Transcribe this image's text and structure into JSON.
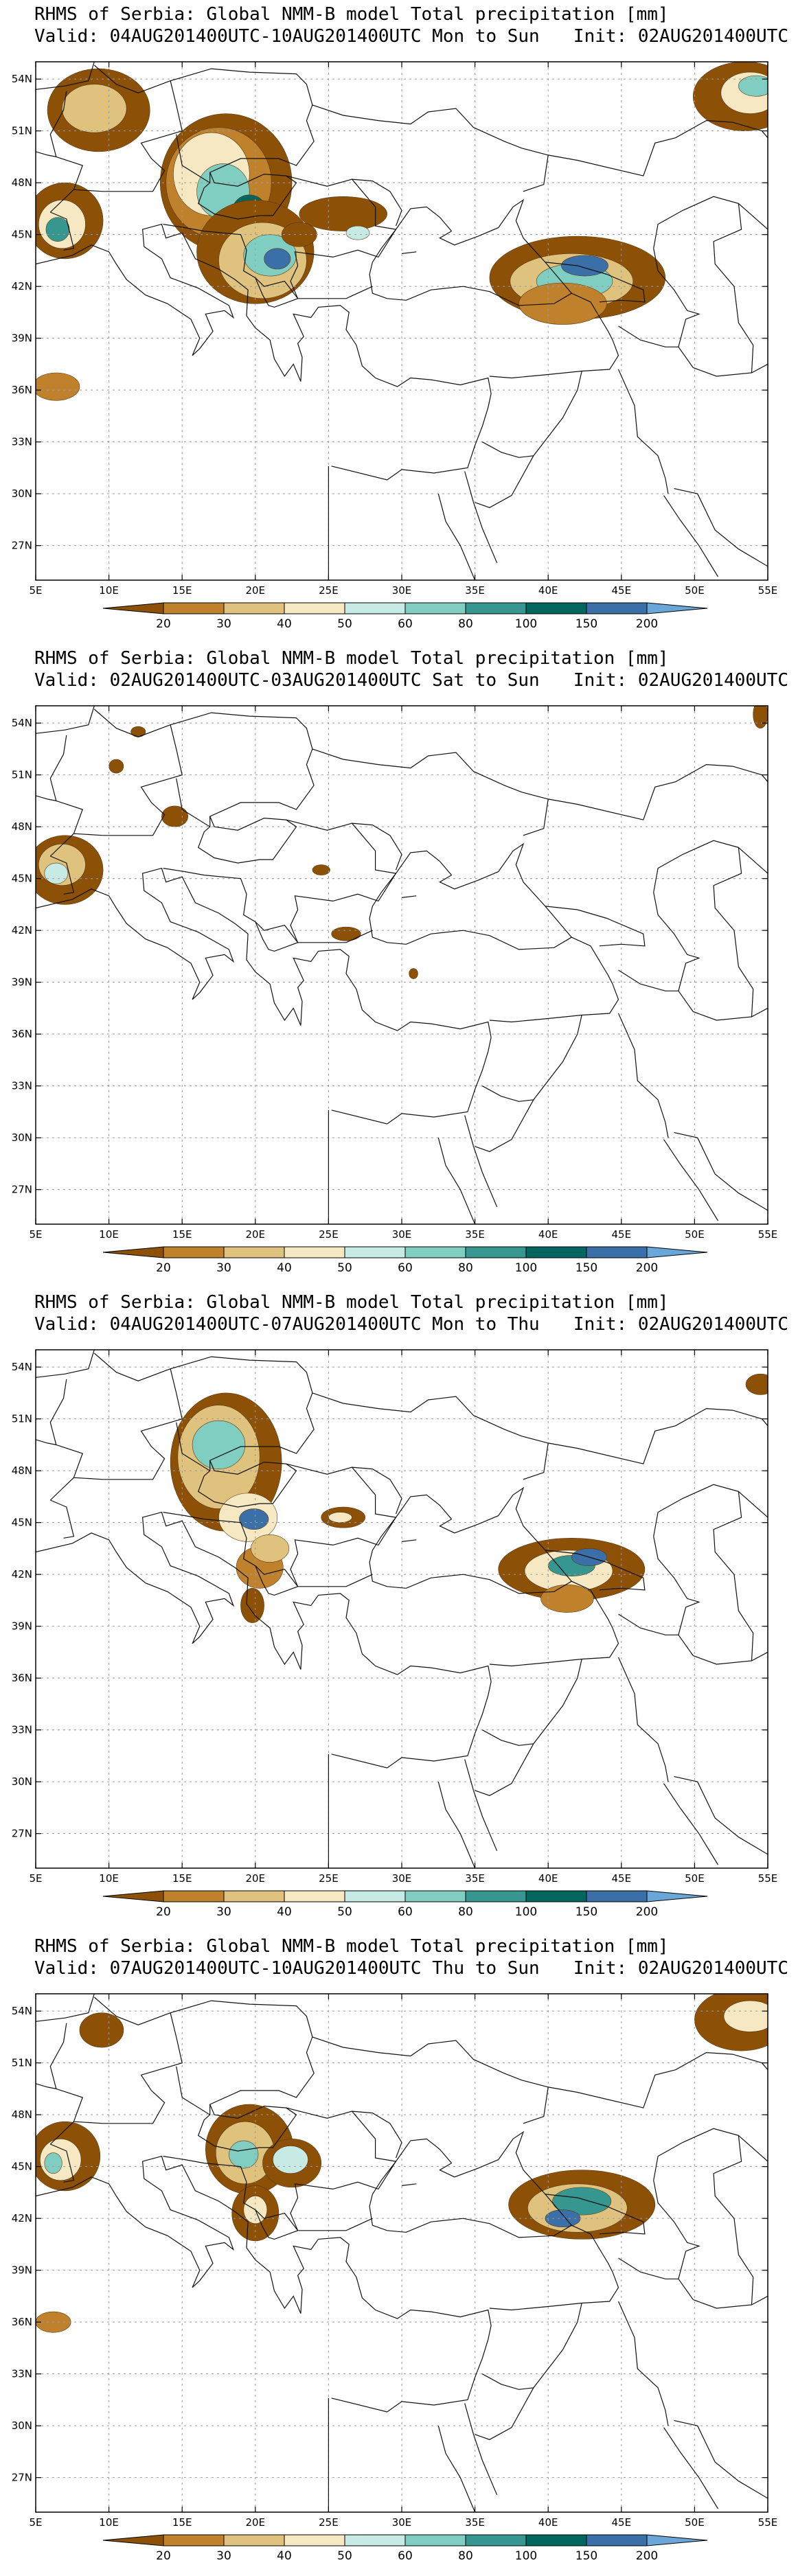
{
  "panels": [
    {
      "title": "RHMS of Serbia: Global NMM-B model Total precipitation [mm]",
      "valid": "Valid: 04AUG201400UTC-10AUG201400UTC Mon to Sun",
      "init": "Init: 02AUG201400UTC"
    },
    {
      "title": "RHMS of Serbia: Global NMM-B model Total precipitation [mm]",
      "valid": "Valid: 02AUG201400UTC-03AUG201400UTC Sat to Sun",
      "init": "Init: 02AUG201400UTC"
    },
    {
      "title": "RHMS of Serbia: Global NMM-B model Total precipitation [mm]",
      "valid": "Valid: 04AUG201400UTC-07AUG201400UTC Mon to Thu",
      "init": "Init: 02AUG201400UTC"
    },
    {
      "title": "RHMS of Serbia: Global NMM-B model Total precipitation [mm]",
      "valid": "Valid: 07AUG201400UTC-10AUG201400UTC Thu to Sun",
      "init": "Init: 02AUG201400UTC"
    }
  ],
  "map": {
    "lon_labels": [
      "5E",
      "10E",
      "15E",
      "20E",
      "25E",
      "30E",
      "35E",
      "40E",
      "45E",
      "50E",
      "55E"
    ],
    "lat_labels": [
      "54N",
      "51N",
      "48N",
      "45N",
      "42N",
      "39N",
      "36N",
      "33N",
      "30N",
      "27N"
    ],
    "lon_range": [
      5,
      55
    ],
    "lat_range": [
      25,
      55
    ]
  },
  "colorbar": {
    "labels": [
      "20",
      "30",
      "40",
      "50",
      "60",
      "80",
      "100",
      "150",
      "200"
    ],
    "colors": [
      "#8c5006",
      "#bf812c",
      "#dfc27d",
      "#f6e8c3",
      "#c7eae5",
      "#80cdc1",
      "#35978f",
      "#01665e",
      "#3b6fa8",
      "#6aa6d8"
    ]
  }
}
